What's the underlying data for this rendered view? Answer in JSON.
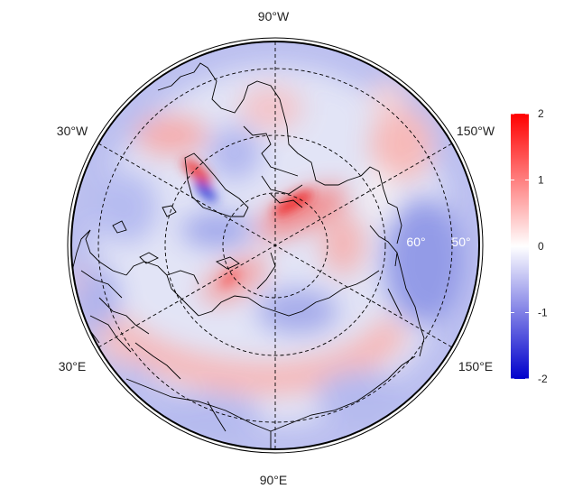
{
  "map": {
    "projection": "north-polar-stereographic",
    "center_latitude": 90,
    "longitude_labels": [
      {
        "text": "90°W",
        "lon": -90
      },
      {
        "text": "30°W",
        "lon": -30
      },
      {
        "text": "150°W",
        "lon": -150
      },
      {
        "text": "30°E",
        "lon": 30
      },
      {
        "text": "150°E",
        "lon": 150
      },
      {
        "text": "90°E",
        "lon": 90
      }
    ],
    "latitude_labels": [
      {
        "text": "60°",
        "lat": 60
      },
      {
        "text": "50°",
        "lat": 50
      }
    ],
    "graticule": {
      "style": "dashed",
      "color": "#000000"
    },
    "field_description_colors": {
      "positive": "#ff0000",
      "neutral": "#ffffff",
      "negative": "#0000cc"
    }
  },
  "colorbar": {
    "min": -2,
    "max": 2,
    "ticks": [
      {
        "value": 2,
        "label": "2"
      },
      {
        "value": 1,
        "label": "1"
      },
      {
        "value": 0,
        "label": "0"
      },
      {
        "value": -1,
        "label": "-1"
      },
      {
        "value": -2,
        "label": "-2"
      }
    ],
    "color_top": "#ff0000",
    "color_mid": "#ffffff",
    "color_bottom": "#0000cc"
  }
}
